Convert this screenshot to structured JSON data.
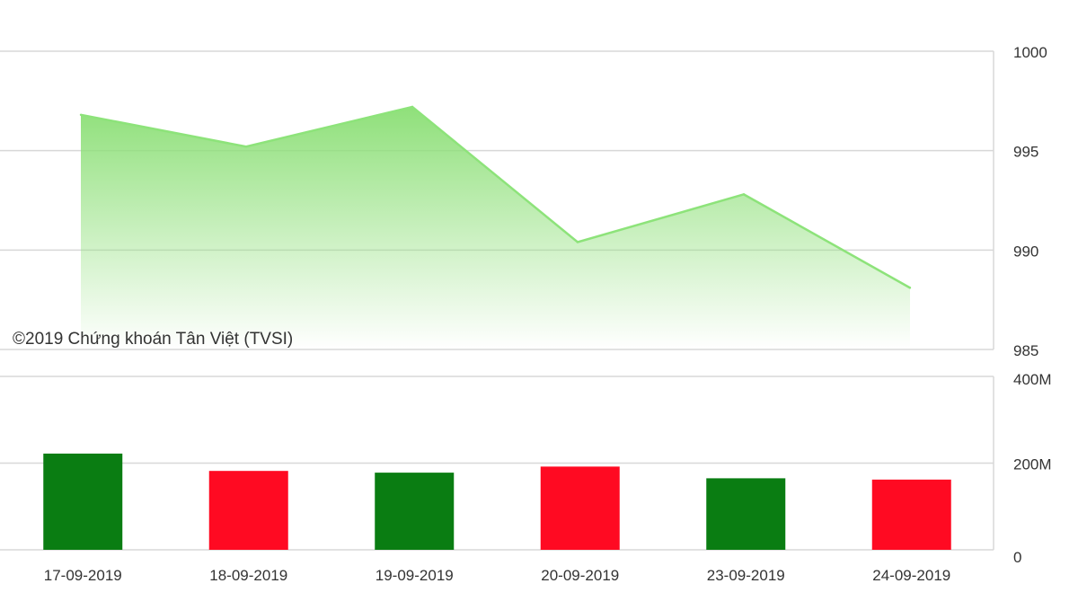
{
  "watermark": "©2019 Chứng khoán Tân Việt (TVSI)",
  "colors": {
    "area_line": "#8de37a",
    "area_fill_top": "#8fe07a",
    "bar_up": "#0a7d12",
    "bar_down": "#ff0a22",
    "grid": "#d8d8d8",
    "axis_text": "#333333"
  },
  "chart_data": [
    {
      "type": "area",
      "categories": [
        "17-09-2019",
        "18-09-2019",
        "19-09-2019",
        "20-09-2019",
        "23-09-2019",
        "24-09-2019"
      ],
      "values": [
        996.8,
        995.2,
        997.2,
        990.4,
        992.8,
        988.1
      ],
      "ylim": [
        985,
        1000
      ],
      "yticks": [
        "1000",
        "995",
        "990",
        "985"
      ],
      "ytick_values": [
        1000,
        995,
        990,
        985
      ],
      "y_axis_position": "right",
      "grid": true
    },
    {
      "type": "bar",
      "categories": [
        "17-09-2019",
        "18-09-2019",
        "19-09-2019",
        "20-09-2019",
        "23-09-2019",
        "24-09-2019"
      ],
      "values": [
        222000000,
        182000000,
        178000000,
        192000000,
        165000000,
        162000000
      ],
      "direction": [
        "up",
        "down",
        "up",
        "down",
        "up",
        "down"
      ],
      "ylim": [
        0,
        400000000
      ],
      "yticks": [
        "400M",
        "200M",
        "0"
      ],
      "ytick_values": [
        400000000,
        200000000,
        0
      ],
      "y_axis_position": "right",
      "grid": true
    }
  ]
}
